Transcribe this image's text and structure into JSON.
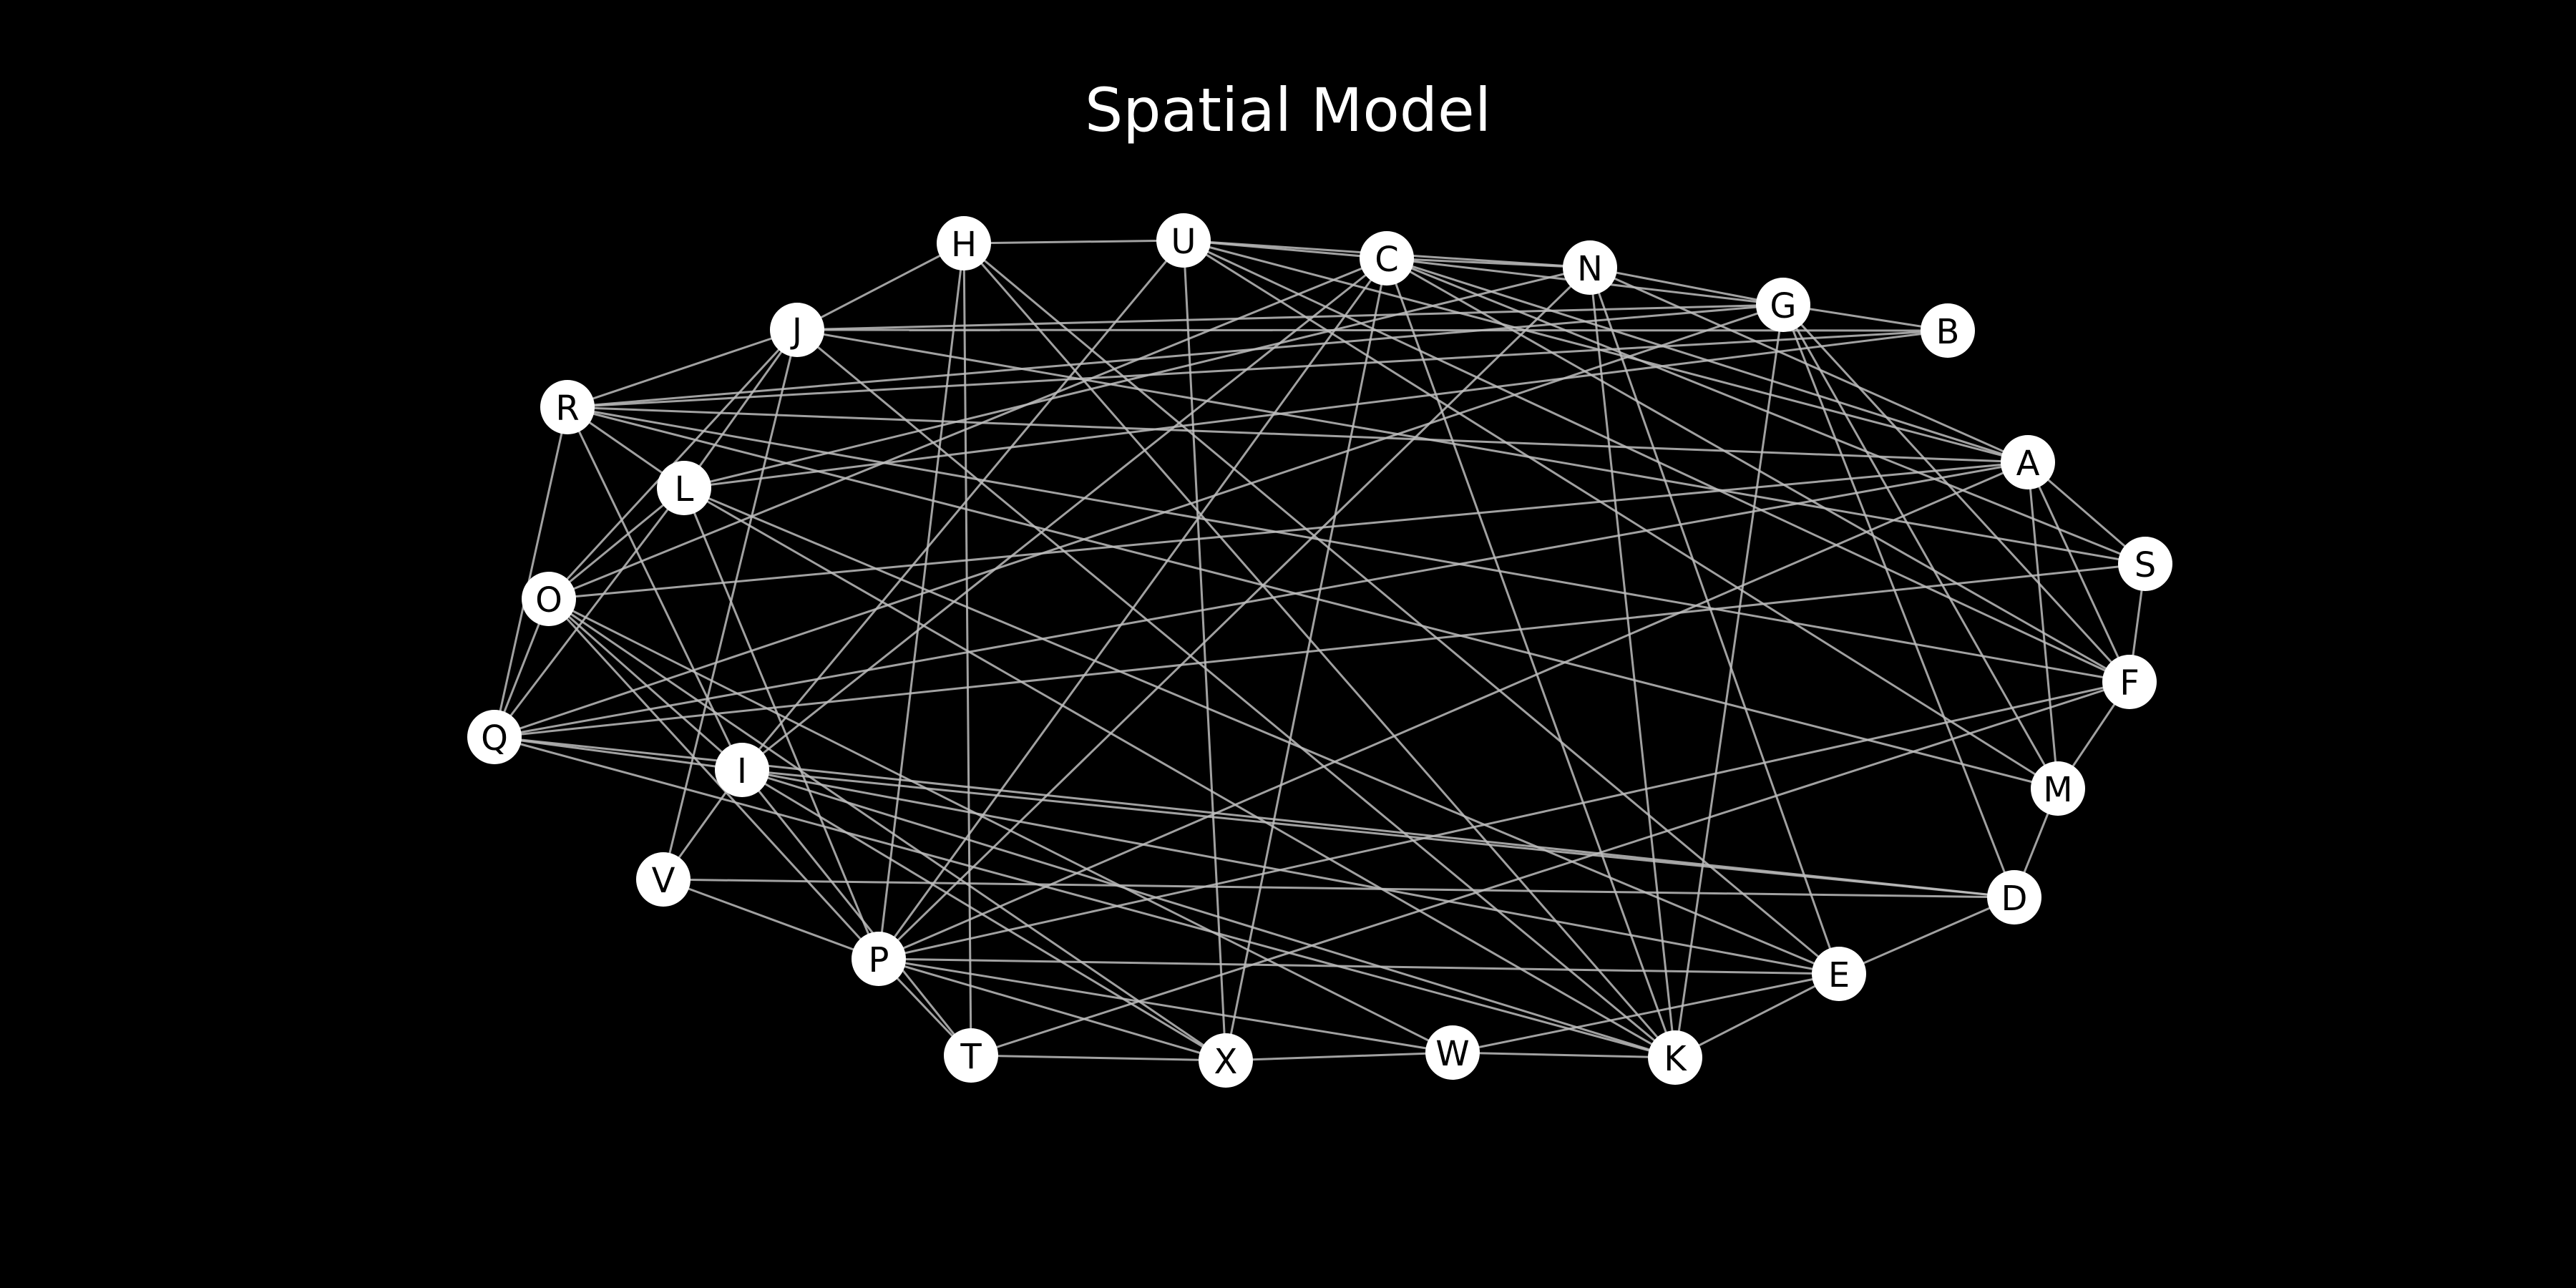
{
  "title": "Spatial Model",
  "colors": {
    "background": "#000000",
    "edge": "#bdbdbd",
    "node": "#ffffff",
    "label": "#000000",
    "title": "#ffffff"
  },
  "nodes": [
    "A",
    "B",
    "C",
    "D",
    "E",
    "F",
    "G",
    "H",
    "I",
    "J",
    "K",
    "L",
    "M",
    "N",
    "O",
    "P",
    "Q",
    "R",
    "S",
    "T",
    "U",
    "V",
    "W",
    "X"
  ],
  "edges": [
    [
      "H",
      "U"
    ],
    [
      "H",
      "J"
    ],
    [
      "H",
      "T"
    ],
    [
      "H",
      "P"
    ],
    [
      "H",
      "K"
    ],
    [
      "H",
      "E"
    ],
    [
      "U",
      "C"
    ],
    [
      "U",
      "N"
    ],
    [
      "U",
      "X"
    ],
    [
      "U",
      "I"
    ],
    [
      "U",
      "F"
    ],
    [
      "U",
      "M"
    ],
    [
      "U",
      "A"
    ],
    [
      "C",
      "N"
    ],
    [
      "C",
      "G"
    ],
    [
      "C",
      "X"
    ],
    [
      "C",
      "K"
    ],
    [
      "C",
      "S"
    ],
    [
      "C",
      "A"
    ],
    [
      "C",
      "I"
    ],
    [
      "C",
      "P"
    ],
    [
      "C",
      "O"
    ],
    [
      "C",
      "F"
    ],
    [
      "N",
      "G"
    ],
    [
      "N",
      "K"
    ],
    [
      "N",
      "E"
    ],
    [
      "N",
      "P"
    ],
    [
      "N",
      "L"
    ],
    [
      "N",
      "A"
    ],
    [
      "G",
      "B"
    ],
    [
      "G",
      "K"
    ],
    [
      "G",
      "M"
    ],
    [
      "G",
      "D"
    ],
    [
      "G",
      "F"
    ],
    [
      "G",
      "Q"
    ],
    [
      "G",
      "R"
    ],
    [
      "G",
      "J"
    ],
    [
      "B",
      "J"
    ],
    [
      "B",
      "L"
    ],
    [
      "B",
      "R"
    ],
    [
      "A",
      "S"
    ],
    [
      "A",
      "M"
    ],
    [
      "A",
      "R"
    ],
    [
      "A",
      "O"
    ],
    [
      "A",
      "Q"
    ],
    [
      "A",
      "F"
    ],
    [
      "A",
      "P"
    ],
    [
      "S",
      "F"
    ],
    [
      "S",
      "J"
    ],
    [
      "S",
      "Q"
    ],
    [
      "F",
      "M"
    ],
    [
      "F",
      "R"
    ],
    [
      "F",
      "T"
    ],
    [
      "F",
      "P"
    ],
    [
      "M",
      "D"
    ],
    [
      "M",
      "R"
    ],
    [
      "D",
      "E"
    ],
    [
      "D",
      "I"
    ],
    [
      "D",
      "V"
    ],
    [
      "D",
      "Q"
    ],
    [
      "E",
      "K"
    ],
    [
      "E",
      "W"
    ],
    [
      "E",
      "P"
    ],
    [
      "E",
      "L"
    ],
    [
      "E",
      "I"
    ],
    [
      "K",
      "W"
    ],
    [
      "K",
      "J"
    ],
    [
      "K",
      "L"
    ],
    [
      "K",
      "Q"
    ],
    [
      "K",
      "I"
    ],
    [
      "W",
      "X"
    ],
    [
      "W",
      "P"
    ],
    [
      "W",
      "O"
    ],
    [
      "X",
      "T"
    ],
    [
      "X",
      "P"
    ],
    [
      "X",
      "I"
    ],
    [
      "X",
      "O"
    ],
    [
      "T",
      "P"
    ],
    [
      "T",
      "I"
    ],
    [
      "P",
      "V"
    ],
    [
      "P",
      "L"
    ],
    [
      "P",
      "O"
    ],
    [
      "V",
      "I"
    ],
    [
      "V",
      "J"
    ],
    [
      "I",
      "R"
    ],
    [
      "I",
      "Q"
    ],
    [
      "I",
      "O"
    ],
    [
      "Q",
      "O"
    ],
    [
      "Q",
      "L"
    ],
    [
      "Q",
      "R"
    ],
    [
      "O",
      "L"
    ],
    [
      "O",
      "J"
    ],
    [
      "L",
      "J"
    ],
    [
      "L",
      "R"
    ],
    [
      "R",
      "J"
    ]
  ]
}
